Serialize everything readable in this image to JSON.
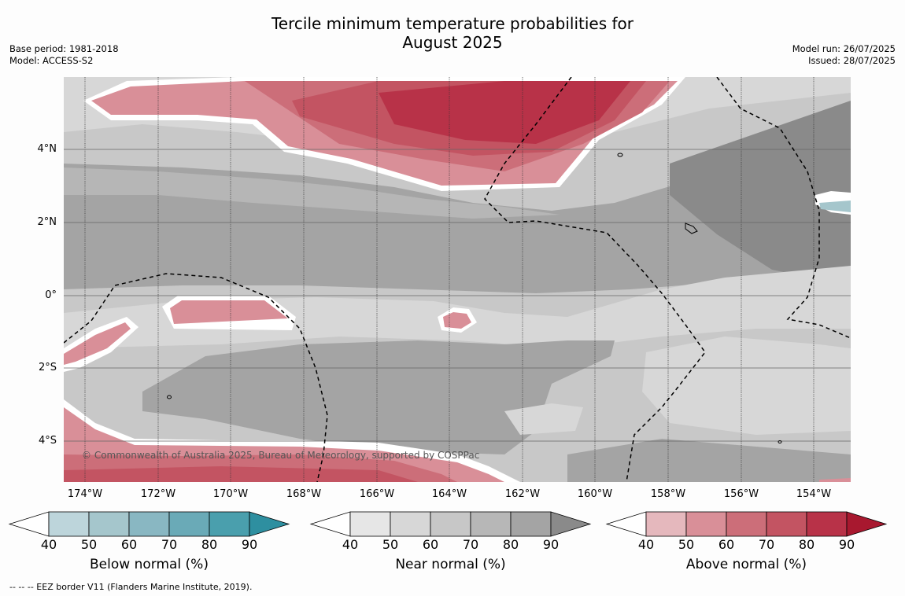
{
  "title_line1": "Tercile minimum temperature probabilities for",
  "title_line2": "August 2025",
  "base_period": "Base period: 1981-2018",
  "model": "Model: ACCESS-S2",
  "model_run": "Model run: 26/07/2025",
  "issued": "Issued: 28/07/2025",
  "lat_labels": [
    "4°N",
    "2°N",
    "0°",
    "2°S",
    "4°S"
  ],
  "lon_labels": [
    "174°W",
    "172°W",
    "170°W",
    "168°W",
    "166°W",
    "164°W",
    "162°W",
    "160°W",
    "158°W",
    "156°W",
    "154°W"
  ],
  "copyright": "© Commonwealth of Australia 2025, Bureau of Meteorology, supported by COSPPac",
  "colorbars": [
    {
      "title": "Below normal (%)",
      "ticks": [
        "40",
        "50",
        "60",
        "70",
        "80",
        "90"
      ],
      "colors": [
        "#bdd5db",
        "#a5c6cc",
        "#89b7c2",
        "#6aaab7",
        "#4a9fad",
        "#2e8fa0"
      ]
    },
    {
      "title": "Near normal (%)",
      "ticks": [
        "40",
        "50",
        "60",
        "70",
        "80",
        "90"
      ],
      "colors": [
        "#e6e6e6",
        "#d7d7d7",
        "#c7c7c7",
        "#b7b7b7",
        "#a4a4a4",
        "#8a8a8a"
      ]
    },
    {
      "title": "Above normal (%)",
      "ticks": [
        "40",
        "50",
        "60",
        "70",
        "80",
        "90"
      ],
      "colors": [
        "#e5b8bd",
        "#d98f98",
        "#cc6e79",
        "#c35462",
        "#b83248",
        "#a8182f"
      ]
    }
  ],
  "footnote": "--  --  -- EEZ border V11 (Flanders Marine Institute, 2019).",
  "colors": {
    "near_40": "#d7d7d7",
    "near_50": "#c8c8c8",
    "near_60": "#b6b6b6",
    "near_70": "#a4a4a4",
    "near_80": "#8a8a8a",
    "above_50": "#d98f98",
    "above_60": "#cc6e79",
    "above_70": "#c35462",
    "above_80": "#b83248",
    "below_50": "#a5c6cc",
    "white": "#ffffff"
  }
}
